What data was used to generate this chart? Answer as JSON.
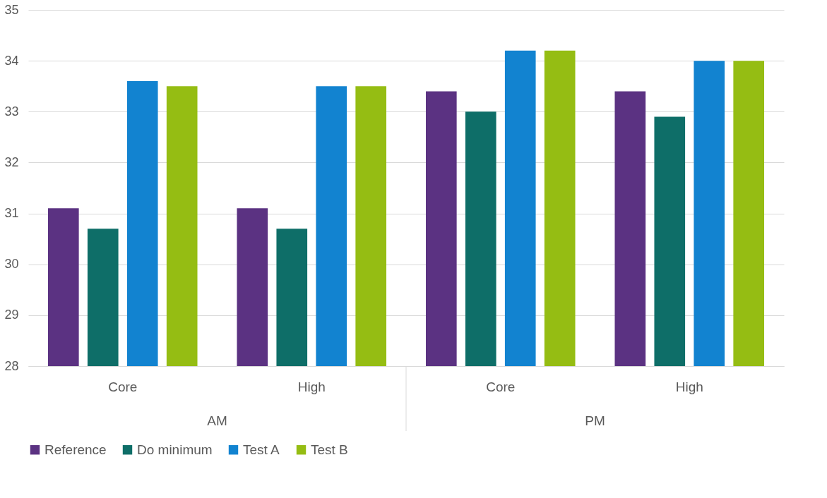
{
  "chart_data": {
    "type": "bar",
    "categories": [
      "Core",
      "High",
      "Core",
      "High"
    ],
    "series": [
      {
        "name": "Reference",
        "color": "#5b3282",
        "values": [
          31.1,
          31.1,
          33.4,
          33.4
        ]
      },
      {
        "name": "Do minimum",
        "color": "#0e6e68",
        "values": [
          30.7,
          30.7,
          33.0,
          32.9
        ]
      },
      {
        "name": "Test A",
        "color": "#1283d0",
        "values": [
          33.6,
          33.5,
          34.2,
          34.0
        ]
      },
      {
        "name": "Test B",
        "color": "#95bd13",
        "values": [
          33.5,
          33.5,
          34.2,
          34.0
        ]
      }
    ],
    "annotations": [
      "AM",
      "PM"
    ],
    "ylim": [
      28,
      35
    ],
    "yticks": [
      28,
      29,
      30,
      31,
      32,
      33,
      34,
      35
    ],
    "grid": "y",
    "legend": "bottom"
  }
}
